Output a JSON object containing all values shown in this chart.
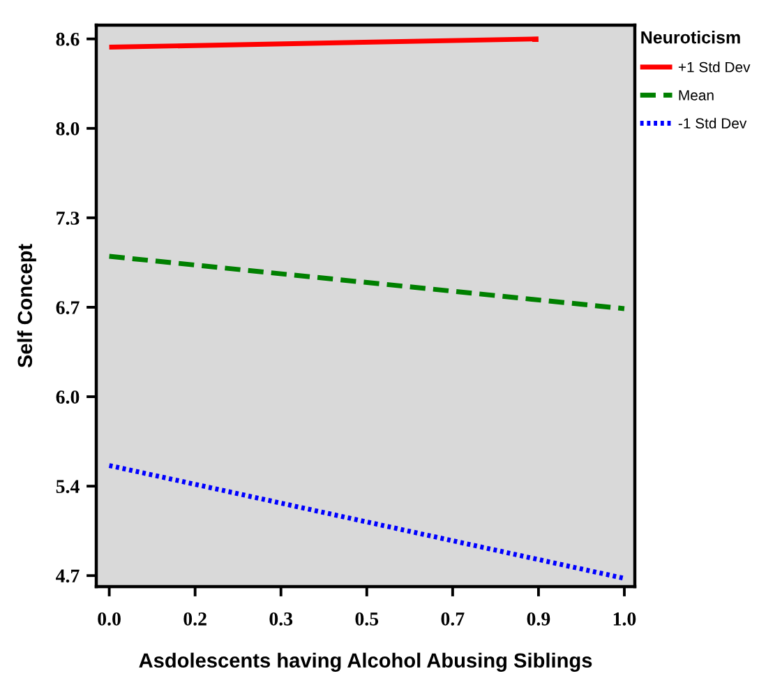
{
  "chart_data": {
    "type": "line",
    "xlabel": "Asdolescents having Alcohol Abusing Siblings",
    "ylabel": "Self Concept",
    "legend_title": "Neuroticism",
    "series": [
      {
        "name": "+1 Std Dev",
        "color": "#ff0000",
        "line_style": "solid",
        "x": [
          0,
          0.86
        ],
        "values": [
          8.54,
          8.6
        ]
      },
      {
        "name": "Mean",
        "color": "#008000",
        "line_style": "dashed",
        "x": [
          0,
          1.032
        ],
        "values": [
          7.02,
          6.64
        ]
      },
      {
        "name": "-1 Std Dev",
        "color": "#0000ff",
        "line_style": "dotted",
        "x": [
          0,
          1.032
        ],
        "values": [
          5.5,
          4.68
        ]
      }
    ],
    "xlim": [
      -0.026,
      1.053
    ],
    "ylim": [
      4.62,
      8.7
    ],
    "xticks": [
      {
        "value": 0,
        "label": "0.0"
      },
      {
        "value": 0.172,
        "label": "0.2"
      },
      {
        "value": 0.344,
        "label": "0.3"
      },
      {
        "value": 0.516,
        "label": "0.5"
      },
      {
        "value": 0.688,
        "label": "0.7"
      },
      {
        "value": 0.86,
        "label": "0.9"
      },
      {
        "value": 1.032,
        "label": "1.0"
      }
    ],
    "yticks": [
      4.7,
      {
        "value": 5.35,
        "label": "5.4"
      },
      {
        "value": 6,
        "label": "6.0"
      },
      {
        "value": 6.65,
        "label": "6.7"
      },
      7.3,
      {
        "value": 7.95,
        "label": "8.0"
      },
      8.6
    ],
    "legend": "top right"
  }
}
